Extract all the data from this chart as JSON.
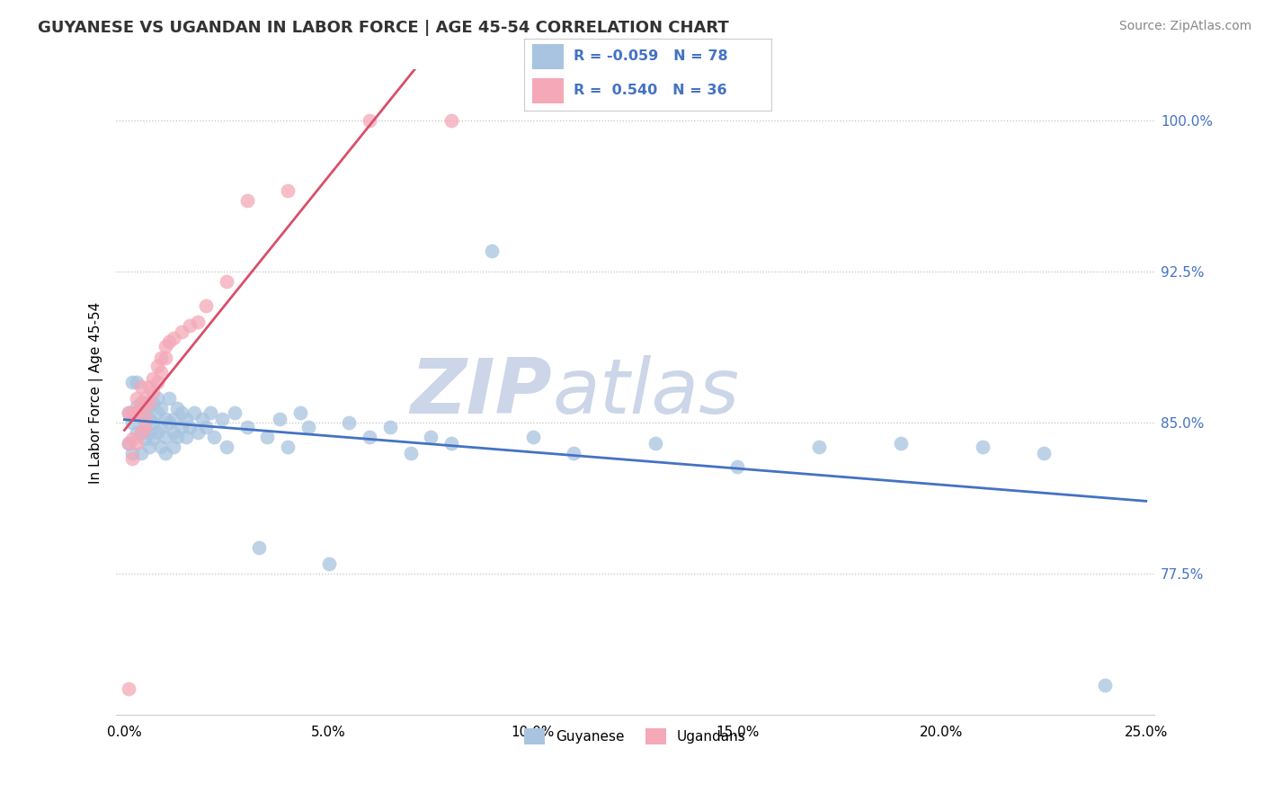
{
  "title": "GUYANESE VS UGANDAN IN LABOR FORCE | AGE 45-54 CORRELATION CHART",
  "source": "Source: ZipAtlas.com",
  "ylabel": "In Labor Force | Age 45-54",
  "xlim": [
    -0.002,
    0.252
  ],
  "ylim": [
    0.705,
    1.025
  ],
  "xticks": [
    0.0,
    0.05,
    0.1,
    0.15,
    0.2,
    0.25
  ],
  "xticklabels": [
    "0.0%",
    "5.0%",
    "10.0%",
    "15.0%",
    "20.0%",
    "25.0%"
  ],
  "yticks_right": [
    0.775,
    0.85,
    0.925,
    1.0
  ],
  "yticklabels_right": [
    "77.5%",
    "85.0%",
    "92.5%",
    "100.0%"
  ],
  "r_guyanese": -0.059,
  "n_guyanese": 78,
  "r_ugandan": 0.54,
  "n_ugandan": 36,
  "guyanese_color": "#a8c4e0",
  "ugandan_color": "#f4a8b8",
  "guyanese_line_color": "#4472c4",
  "ugandan_line_color": "#d94f6a",
  "watermark_zip": "ZIP",
  "watermark_atlas": "atlas",
  "watermark_color": "#ccd6e8",
  "legend_labels": [
    "Guyanese",
    "Ugandans"
  ],
  "guyanese_x": [
    0.001,
    0.001,
    0.002,
    0.002,
    0.002,
    0.003,
    0.003,
    0.003,
    0.003,
    0.004,
    0.004,
    0.004,
    0.004,
    0.005,
    0.005,
    0.005,
    0.005,
    0.006,
    0.006,
    0.006,
    0.006,
    0.007,
    0.007,
    0.007,
    0.008,
    0.008,
    0.008,
    0.009,
    0.009,
    0.009,
    0.01,
    0.01,
    0.01,
    0.011,
    0.011,
    0.012,
    0.012,
    0.012,
    0.013,
    0.013,
    0.014,
    0.014,
    0.015,
    0.015,
    0.016,
    0.017,
    0.018,
    0.019,
    0.02,
    0.021,
    0.022,
    0.024,
    0.025,
    0.027,
    0.03,
    0.033,
    0.035,
    0.038,
    0.04,
    0.043,
    0.045,
    0.05,
    0.055,
    0.06,
    0.065,
    0.07,
    0.075,
    0.08,
    0.09,
    0.1,
    0.11,
    0.13,
    0.15,
    0.17,
    0.19,
    0.21,
    0.225,
    0.24
  ],
  "guyanese_y": [
    0.84,
    0.855,
    0.835,
    0.85,
    0.87,
    0.845,
    0.855,
    0.87,
    0.858,
    0.853,
    0.845,
    0.86,
    0.835,
    0.855,
    0.848,
    0.842,
    0.86,
    0.852,
    0.845,
    0.858,
    0.838,
    0.85,
    0.86,
    0.842,
    0.855,
    0.845,
    0.862,
    0.848,
    0.838,
    0.857,
    0.852,
    0.843,
    0.835,
    0.85,
    0.862,
    0.845,
    0.852,
    0.838,
    0.857,
    0.843,
    0.848,
    0.855,
    0.843,
    0.852,
    0.848,
    0.855,
    0.845,
    0.852,
    0.848,
    0.855,
    0.843,
    0.852,
    0.838,
    0.855,
    0.848,
    0.788,
    0.843,
    0.852,
    0.838,
    0.855,
    0.848,
    0.78,
    0.85,
    0.843,
    0.848,
    0.835,
    0.843,
    0.84,
    0.935,
    0.843,
    0.835,
    0.84,
    0.828,
    0.838,
    0.84,
    0.838,
    0.835,
    0.72
  ],
  "ugandan_x": [
    0.001,
    0.001,
    0.001,
    0.002,
    0.002,
    0.002,
    0.003,
    0.003,
    0.003,
    0.004,
    0.004,
    0.004,
    0.005,
    0.005,
    0.005,
    0.006,
    0.006,
    0.007,
    0.007,
    0.008,
    0.008,
    0.009,
    0.009,
    0.01,
    0.01,
    0.011,
    0.012,
    0.014,
    0.016,
    0.018,
    0.02,
    0.025,
    0.03,
    0.04,
    0.06,
    0.08
  ],
  "ugandan_y": [
    0.718,
    0.84,
    0.855,
    0.832,
    0.842,
    0.855,
    0.84,
    0.855,
    0.862,
    0.845,
    0.858,
    0.868,
    0.853,
    0.862,
    0.848,
    0.86,
    0.868,
    0.865,
    0.872,
    0.87,
    0.878,
    0.875,
    0.882,
    0.882,
    0.888,
    0.89,
    0.892,
    0.895,
    0.898,
    0.9,
    0.908,
    0.92,
    0.96,
    0.965,
    1.0,
    1.0
  ]
}
